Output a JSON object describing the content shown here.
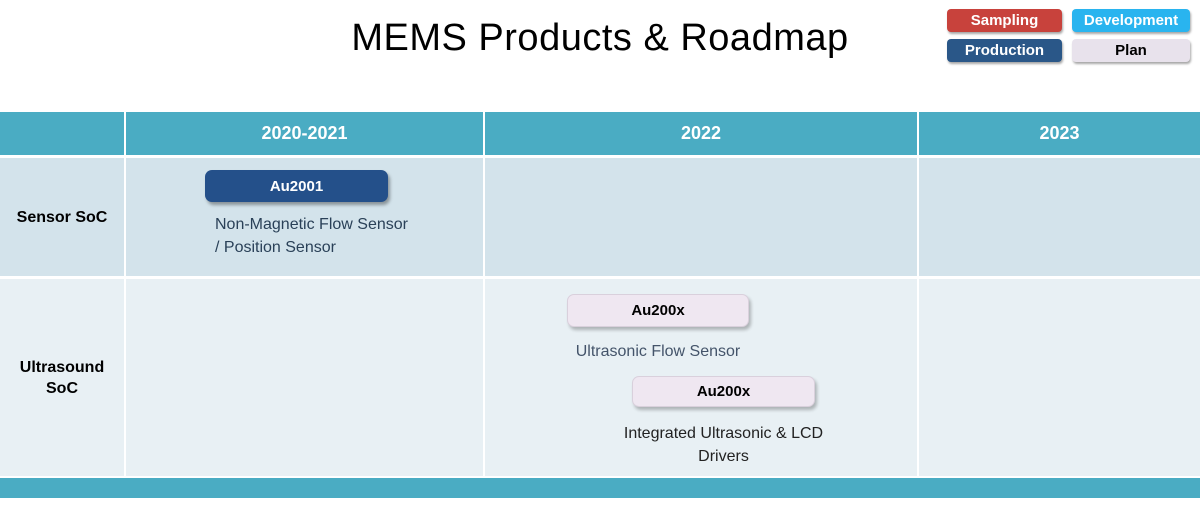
{
  "title": "MEMS Products & Roadmap",
  "legend": [
    {
      "label": "Sampling",
      "bg": "#C8423C",
      "fg": "#FFFFFF"
    },
    {
      "label": "Development",
      "bg": "#29B4EF",
      "fg": "#FFFFFF"
    },
    {
      "label": "Production",
      "bg": "#2A5788",
      "fg": "#FFFFFF"
    },
    {
      "label": "Plan",
      "bg": "#E8E2EC",
      "fg": "#000000"
    }
  ],
  "table": {
    "columns": [
      "2020-2021",
      "2022",
      "2023"
    ],
    "row_labels": [
      "Sensor SoC",
      "Ultrasound SoC"
    ]
  },
  "items": [
    {
      "chip": "Au2001",
      "status": "Production",
      "row": "Sensor SoC",
      "period": "2020-2021",
      "desc_lines": [
        "Non-Magnetic Flow Sensor",
        "/ Position Sensor"
      ]
    },
    {
      "chip": "Au200x",
      "status": "Plan",
      "row": "Ultrasound SoC",
      "period": "2022",
      "desc_lines": [
        "Ultrasonic Flow Sensor"
      ]
    },
    {
      "chip": "Au200x",
      "status": "Plan",
      "row": "Ultrasound SoC",
      "period": "2022",
      "desc_lines": [
        "Integrated Ultrasonic & LCD",
        "Drivers"
      ]
    }
  ],
  "colors": {
    "header_teal": "#4AACC3",
    "row1_bg": "#D3E3EB",
    "row2_bg": "#E8F0F4",
    "chip_navy": "#24508A",
    "chip_lavender": "#EFE7F1",
    "footer_bar": "#4AACC3"
  }
}
